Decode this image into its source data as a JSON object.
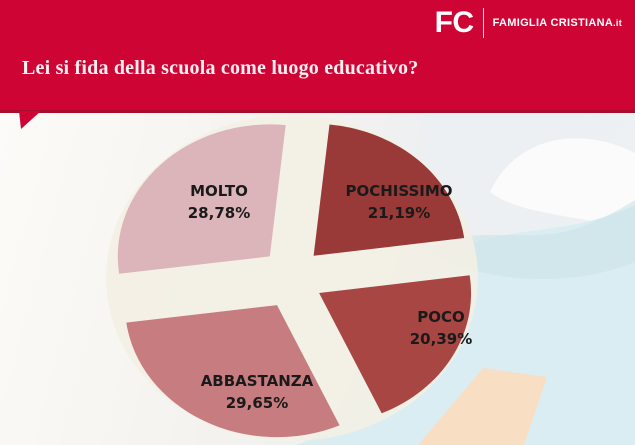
{
  "header": {
    "logo": {
      "monogram": "FC",
      "wordmark": "FAMIGLIA CRISTIANA",
      "wordmark_suffix": ".it"
    },
    "title": "Lei si fida della scuola come luogo educativo?",
    "background_color": "#CE0434",
    "bottom_line_color": "#A90C2B",
    "title_color": "#FBEFF1"
  },
  "chart_data": {
    "type": "pie",
    "title": "Lei si fida della scuola come luogo educativo?",
    "unit": "%",
    "exploded": true,
    "direction": "clockwise",
    "start_angle_deg": 6,
    "legend_position": "labels-on-slices",
    "label_color": "#1A1A1A",
    "slices": [
      {
        "label": "POCHISSIMO",
        "value": 21.19,
        "display": "21,19%",
        "color": "#993A38"
      },
      {
        "label": "POCO",
        "value": 20.39,
        "display": "20,39%",
        "color": "#A74642"
      },
      {
        "label": "ABBASTANZA",
        "value": 29.65,
        "display": "29,65%",
        "color": "#C77C80"
      },
      {
        "label": "MOLTO",
        "value": 28.78,
        "display": "28,78%",
        "color": "#DCB5BA"
      }
    ]
  },
  "background": {
    "wave_white": "#FAFBFA",
    "wave_teal": "#CBE2E6",
    "wave_blue": "#D9EDF2",
    "peach": "#F8DFC4",
    "cream": "#F3EFE4"
  }
}
